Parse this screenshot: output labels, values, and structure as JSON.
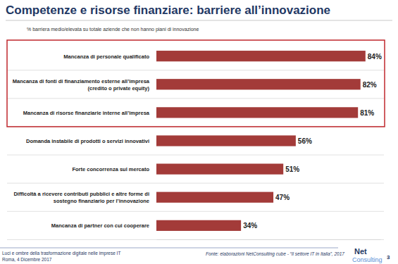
{
  "chart_data": {
    "type": "bar",
    "orientation": "horizontal",
    "title": "Competenze e risorse finanziare: barriere all’innovazione",
    "subtitle": "% barriera medio/elevata su totale aziende che non hanno piani di innovazione",
    "categories": [
      "Mancanza di personale qualificato",
      "Mancanza di fonti di finanziamento esterne all’impresa\n(credito o private equity)",
      "Mancanza di risorse finanziarie interne all’impresa",
      "Domanda instabile di prodotti o servizi innovativi",
      "Forte concorrenza sul mercato",
      "Difficoltà a ricevere contributi pubblici e altre forme di\nsostegno finanziario per l’innovazione",
      "Mancanza di partner con cui cooperare"
    ],
    "values": [
      84,
      82,
      81,
      56,
      51,
      47,
      34
    ],
    "value_labels": [
      "84%",
      "82%",
      "81%",
      "56%",
      "51%",
      "47%",
      "34%"
    ],
    "data_labels": true,
    "color": "#a33b39",
    "xlim": [
      0,
      90
    ],
    "xticks": [],
    "tick_labels": false,
    "grid": false,
    "footer": [
      "Luci e ombre della trasformazione digitale nelle imprese IT",
      "Roma, 4 Dicembre 2017"
    ],
    "source": "Fonte: elaborazioni NetConsulting cube - “Il settore IT in Italia”, 2017",
    "logo": [
      "Net",
      "Consulting",
      "3"
    ]
  }
}
